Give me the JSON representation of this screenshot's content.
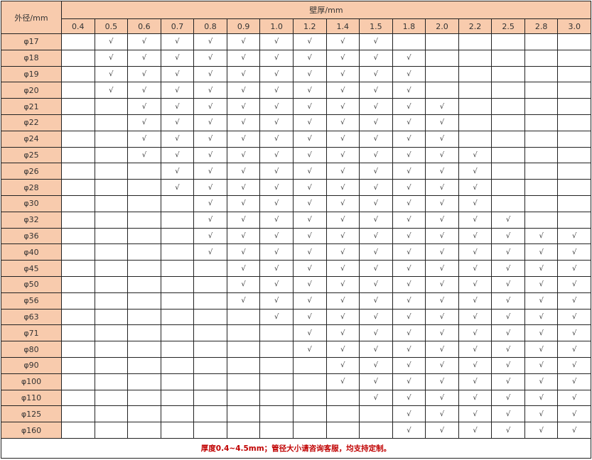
{
  "header": {
    "od_label": "外径/mm",
    "wall_label": "壁厚/mm"
  },
  "thicknesses": [
    "0.4",
    "0.5",
    "0.6",
    "0.7",
    "0.8",
    "0.9",
    "1.0",
    "1.2",
    "1.4",
    "1.5",
    "1.8",
    "2.0",
    "2.2",
    "2.5",
    "2.8",
    "3.0"
  ],
  "check_mark": "√",
  "rows": [
    {
      "od": "φ17",
      "cells": [
        "",
        "√",
        "√",
        "√",
        "√",
        "√",
        "√",
        "√",
        "√",
        "√",
        "",
        "",
        "",
        "",
        "",
        ""
      ]
    },
    {
      "od": "φ18",
      "cells": [
        "",
        "√",
        "√",
        "√",
        "√",
        "√",
        "√",
        "√",
        "√",
        "√",
        "√",
        "",
        "",
        "",
        "",
        ""
      ]
    },
    {
      "od": "φ19",
      "cells": [
        "",
        "√",
        "√",
        "√",
        "√",
        "√",
        "√",
        "√",
        "√",
        "√",
        "√",
        "",
        "",
        "",
        "",
        ""
      ]
    },
    {
      "od": "φ20",
      "cells": [
        "",
        "√",
        "√",
        "√",
        "√",
        "√",
        "√",
        "√",
        "√",
        "√",
        "√",
        "",
        "",
        "",
        "",
        ""
      ]
    },
    {
      "od": "φ21",
      "cells": [
        "",
        "",
        "√",
        "√",
        "√",
        "√",
        "√",
        "√",
        "√",
        "√",
        "√",
        "√",
        "",
        "",
        "",
        ""
      ]
    },
    {
      "od": "φ22",
      "cells": [
        "",
        "",
        "√",
        "√",
        "√",
        "√",
        "√",
        "√",
        "√",
        "√",
        "√",
        "√",
        "",
        "",
        "",
        ""
      ]
    },
    {
      "od": "φ24",
      "cells": [
        "",
        "",
        "√",
        "√",
        "√",
        "√",
        "√",
        "√",
        "√",
        "√",
        "√",
        "√",
        "",
        "",
        "",
        ""
      ]
    },
    {
      "od": "φ25",
      "cells": [
        "",
        "",
        "√",
        "√",
        "√",
        "√",
        "√",
        "√",
        "√",
        "√",
        "√",
        "√",
        "√",
        "",
        "",
        ""
      ]
    },
    {
      "od": "φ26",
      "cells": [
        "",
        "",
        "",
        "√",
        "√",
        "√",
        "√",
        "√",
        "√",
        "√",
        "√",
        "√",
        "√",
        "",
        "",
        ""
      ]
    },
    {
      "od": "φ28",
      "cells": [
        "",
        "",
        "",
        "√",
        "√",
        "√",
        "√",
        "√",
        "√",
        "√",
        "√",
        "√",
        "√",
        "",
        "",
        ""
      ]
    },
    {
      "od": "φ30",
      "cells": [
        "",
        "",
        "",
        "",
        "√",
        "√",
        "√",
        "√",
        "√",
        "√",
        "√",
        "√",
        "√",
        "",
        "",
        ""
      ]
    },
    {
      "od": "φ32",
      "cells": [
        "",
        "",
        "",
        "",
        "√",
        "√",
        "√",
        "√",
        "√",
        "√",
        "√",
        "√",
        "√",
        "√",
        "",
        ""
      ]
    },
    {
      "od": "φ36",
      "cells": [
        "",
        "",
        "",
        "",
        "√",
        "√",
        "√",
        "√",
        "√",
        "√",
        "√",
        "√",
        "√",
        "√",
        "√",
        "√"
      ]
    },
    {
      "od": "φ40",
      "cells": [
        "",
        "",
        "",
        "",
        "√",
        "√",
        "√",
        "√",
        "√",
        "√",
        "√",
        "√",
        "√",
        "√",
        "√",
        "√"
      ]
    },
    {
      "od": "φ45",
      "cells": [
        "",
        "",
        "",
        "",
        "",
        "√",
        "√",
        "√",
        "√",
        "√",
        "√",
        "√",
        "√",
        "√",
        "√",
        "√"
      ]
    },
    {
      "od": "φ50",
      "cells": [
        "",
        "",
        "",
        "",
        "",
        "√",
        "√",
        "√",
        "√",
        "√",
        "√",
        "√",
        "√",
        "√",
        "√",
        "√"
      ]
    },
    {
      "od": "φ56",
      "cells": [
        "",
        "",
        "",
        "",
        "",
        "√",
        "√",
        "√",
        "√",
        "√",
        "√",
        "√",
        "√",
        "√",
        "√",
        "√"
      ]
    },
    {
      "od": "φ63",
      "cells": [
        "",
        "",
        "",
        "",
        "",
        "",
        "√",
        "√",
        "√",
        "√",
        "√",
        "√",
        "√",
        "√",
        "√",
        "√"
      ]
    },
    {
      "od": "φ71",
      "cells": [
        "",
        "",
        "",
        "",
        "",
        "",
        "",
        "√",
        "√",
        "√",
        "√",
        "√",
        "√",
        "√",
        "√",
        "√"
      ]
    },
    {
      "od": "φ80",
      "cells": [
        "",
        "",
        "",
        "",
        "",
        "",
        "",
        "√",
        "√",
        "√",
        "√",
        "√",
        "√",
        "√",
        "√",
        "√"
      ]
    },
    {
      "od": "φ90",
      "cells": [
        "",
        "",
        "",
        "",
        "",
        "",
        "",
        "",
        "√",
        "√",
        "√",
        "√",
        "√",
        "√",
        "√",
        "√"
      ]
    },
    {
      "od": "φ100",
      "cells": [
        "",
        "",
        "",
        "",
        "",
        "",
        "",
        "",
        "√",
        "√",
        "√",
        "√",
        "√",
        "√",
        "√",
        "√"
      ]
    },
    {
      "od": "φ110",
      "cells": [
        "",
        "",
        "",
        "",
        "",
        "",
        "",
        "",
        "",
        "√",
        "√",
        "√",
        "√",
        "√",
        "√",
        "√"
      ]
    },
    {
      "od": "φ125",
      "cells": [
        "",
        "",
        "",
        "",
        "",
        "",
        "",
        "",
        "",
        "",
        "√",
        "√",
        "√",
        "√",
        "√",
        "√"
      ]
    },
    {
      "od": "φ160",
      "cells": [
        "",
        "",
        "",
        "",
        "",
        "",
        "",
        "",
        "",
        "",
        "√",
        "√",
        "√",
        "√",
        "√",
        "√"
      ]
    }
  ],
  "footer": {
    "note": "厚度0.4~4.5mm；管径大小请咨询客服，均支持定制。"
  },
  "colors": {
    "header_bg": "#f8cbad",
    "note_text": "#c00000"
  }
}
